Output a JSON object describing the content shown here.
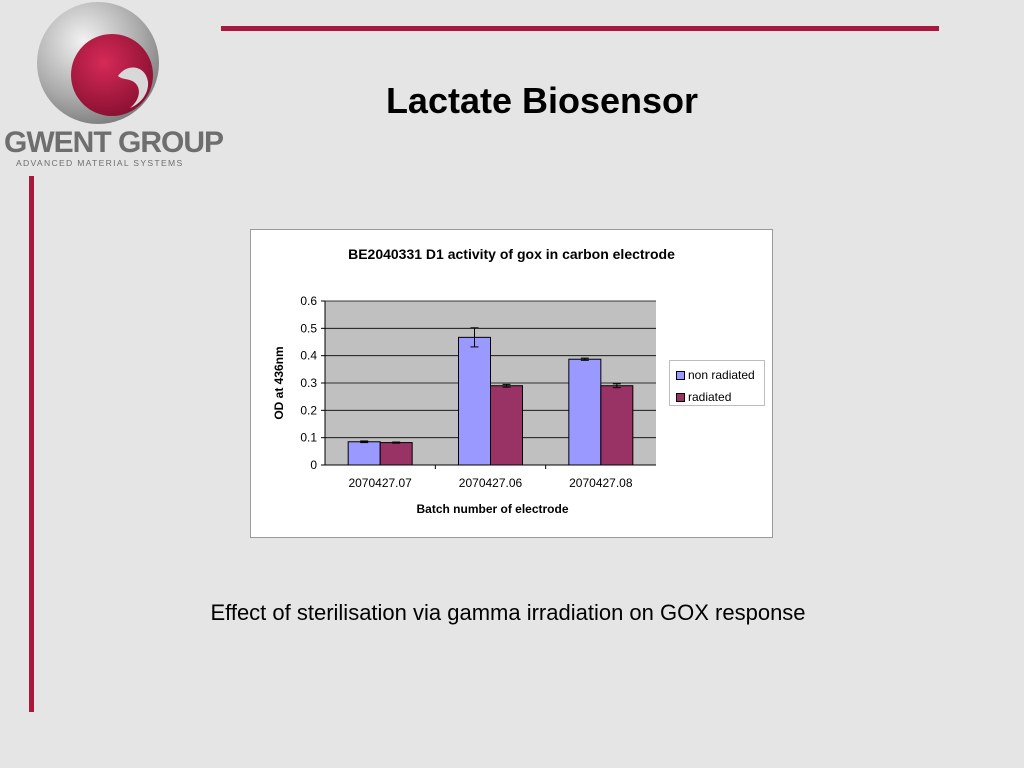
{
  "slide": {
    "title": "Lactate Biosensor",
    "caption": "Effect of sterilisation via gamma irradiation on GOX response"
  },
  "logo": {
    "name": "GWENT GROUP",
    "tagline": "ADVANCED MATERIAL SYSTEMS"
  },
  "colors": {
    "accent": "#a8173e",
    "plot_bg": "#c0c0c0",
    "non_radiated": "#9999ff",
    "radiated": "#993366"
  },
  "chart_data": {
    "type": "bar",
    "title": "BE2040331 D1 activity of gox in carbon electrode",
    "xlabel": "Batch number of electrode",
    "ylabel": "OD at 436nm",
    "categories": [
      "2070427.07",
      "2070427.06",
      "2070427.08"
    ],
    "ylim": [
      0,
      0.6
    ],
    "yticks": [
      "0",
      "0.1",
      "0.2",
      "0.3",
      "0.4",
      "0.5",
      "0.6"
    ],
    "grid": true,
    "legend_position": "right",
    "series": [
      {
        "name": "non radiated",
        "values": [
          0.085,
          0.467,
          0.387
        ],
        "errors": [
          0.003,
          0.035,
          0.004
        ]
      },
      {
        "name": "radiated",
        "values": [
          0.082,
          0.29,
          0.29
        ],
        "errors": [
          0.002,
          0.005,
          0.007
        ]
      }
    ]
  }
}
